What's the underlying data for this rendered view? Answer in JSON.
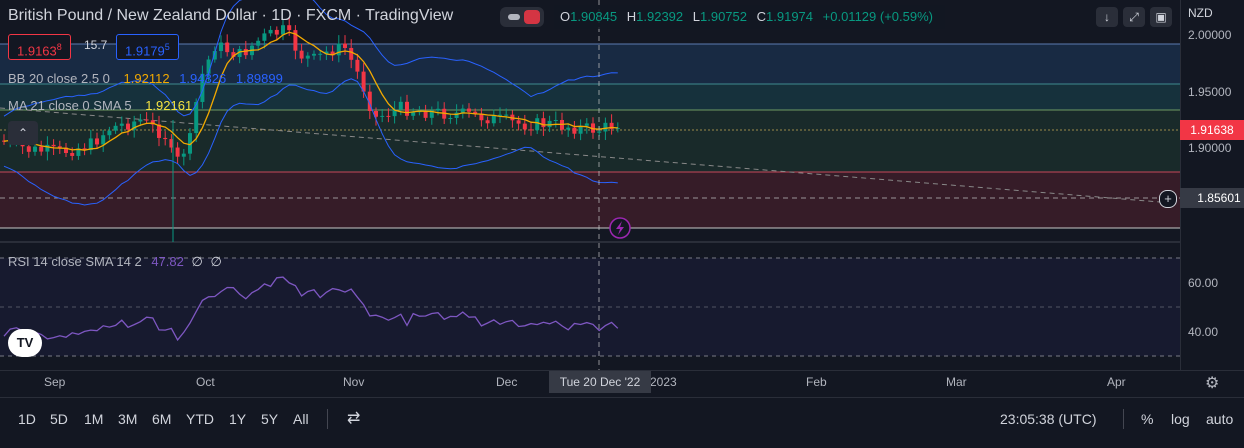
{
  "header": {
    "title": "British Pound / New Zealand Dollar · 1D · FXCM · TradingView",
    "ohlc": {
      "o_label": "O",
      "o": "1.90845",
      "h_label": "H",
      "h": "1.92392",
      "l_label": "L",
      "l": "1.90752",
      "c_label": "C",
      "c": "1.91974",
      "change": "+0.01129 (+0.59%)"
    },
    "bid": "1.9163",
    "bid_sup": "8",
    "spread": "15.7",
    "ask": "1.9179",
    "ask_sup": "5",
    "currency": "NZD"
  },
  "indicators": {
    "bb": {
      "label": "BB 20 close 2.5 0",
      "basis": "1.92112",
      "upper": "1.94326",
      "lower": "1.89899"
    },
    "ma": {
      "label": "MA 21 close 0 SMA 5",
      "value": "1.92161"
    },
    "rsi": {
      "label": "RSI 14 close SMA 14 2",
      "value": "47.82",
      "v2": "∅",
      "v3": "∅"
    }
  },
  "price_axis": {
    "ticks": [
      "2.00000",
      "1.95000",
      "1.90000"
    ],
    "current_price": "1.91638",
    "crosshair_price": "1.85601"
  },
  "rsi_axis": {
    "ticks": [
      "60.00",
      "40.00"
    ]
  },
  "time_axis": {
    "ticks": [
      "Sep",
      "Oct",
      "Nov",
      "Dec",
      "2023",
      "Feb",
      "Mar",
      "Apr"
    ],
    "crosshair_date": "Tue 20 Dec '22"
  },
  "timeframes": [
    "1D",
    "5D",
    "1M",
    "3M",
    "6M",
    "YTD",
    "1Y",
    "5Y",
    "All"
  ],
  "status": {
    "time": "23:05:38 (UTC)",
    "percent": "%",
    "log": "log",
    "auto": "auto"
  },
  "logo_text": "TV",
  "colors": {
    "up": "#089981",
    "down": "#f23645",
    "bb": "#2962ff",
    "ma": "#f2a900",
    "rsi": "#7e57c2",
    "bg": "#131722"
  },
  "icons": [
    "arrow-down-icon",
    "expand-icon",
    "fullscreen-icon",
    "chevron-up-icon",
    "plus-crosshair-icon",
    "lightning-icon",
    "compare-icon",
    "settings-gear-icon"
  ]
}
